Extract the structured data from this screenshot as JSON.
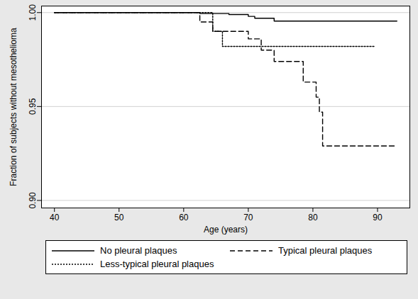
{
  "chart_data": {
    "type": "line",
    "x_label": "Age (years)",
    "y_label": "Fraction of subjects without mesothelioma",
    "xlim": [
      38,
      95
    ],
    "xticks": [
      40,
      50,
      60,
      70,
      80,
      90
    ],
    "ylim": [
      0.896,
      1.0035
    ],
    "yticks": [
      {
        "value": 0.9,
        "label": "0.90"
      },
      {
        "value": 0.95,
        "label": "0.95"
      },
      {
        "value": 1,
        "label": "1.00"
      }
    ],
    "grid": true,
    "legend": "bottom",
    "series": [
      {
        "name": "No pleural plaques",
        "color": "#000000",
        "line_style": "solid",
        "x": [
          40,
          62.5,
          67,
          70,
          71,
          74,
          93
        ],
        "values": [
          1,
          0.9995,
          0.999,
          0.998,
          0.997,
          0.9955,
          0.9955
        ]
      },
      {
        "name": "Typical pleural plaques",
        "color": "#000000",
        "line_style": "dashed",
        "x": [
          40,
          62.5,
          64.5,
          68.5,
          70,
          72,
          74,
          78.5,
          80.5,
          81,
          81.5,
          93
        ],
        "values": [
          1,
          0.995,
          0.99,
          0.99,
          0.986,
          0.98,
          0.974,
          0.963,
          0.955,
          0.947,
          0.929,
          0.929
        ]
      },
      {
        "name": "Less-typical pleural plaques",
        "color": "#000000",
        "line_style": "dotted",
        "x": [
          40,
          64.5,
          66,
          89.5
        ],
        "values": [
          1,
          0.99,
          0.982,
          0.982
        ]
      }
    ]
  }
}
